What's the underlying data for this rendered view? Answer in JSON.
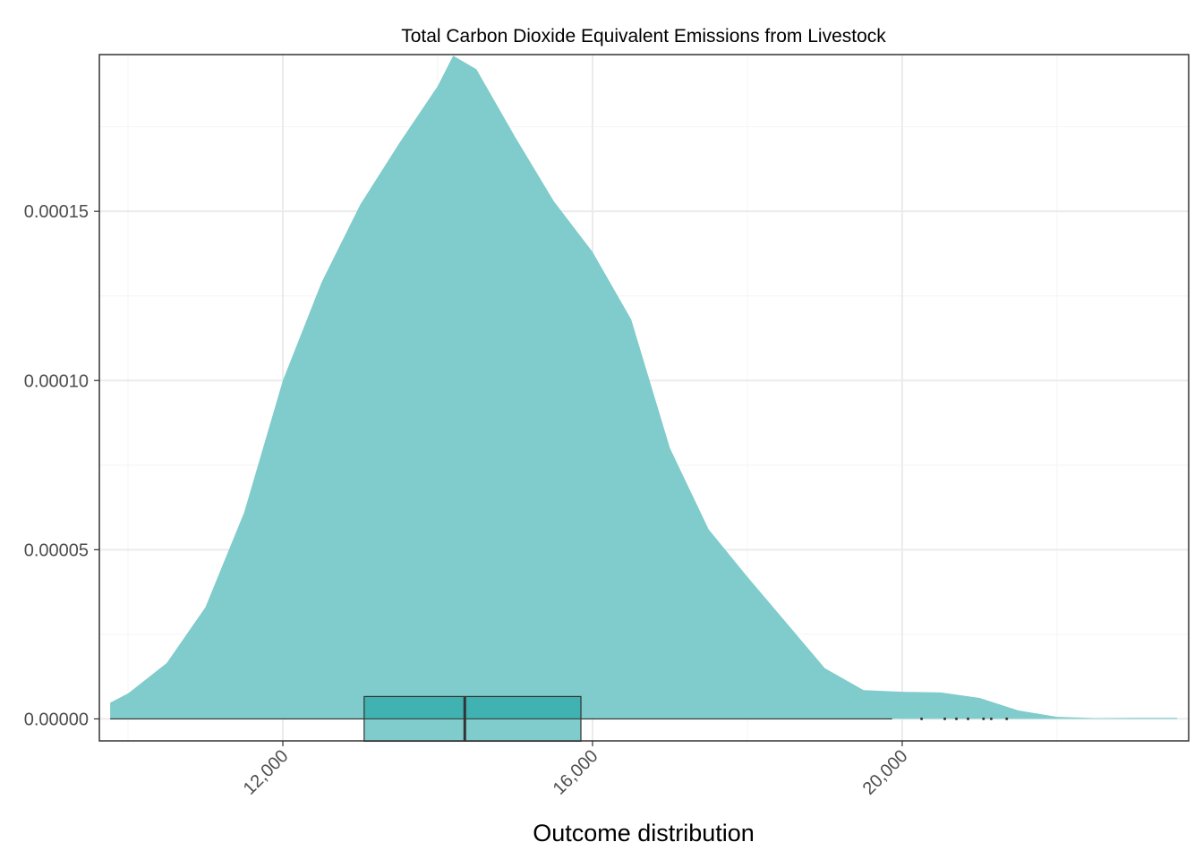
{
  "chart_data": {
    "type": "area",
    "title": "Total Carbon Dioxide Equivalent Emissions from Livestock",
    "xlabel": "Outcome distribution",
    "ylabel": "",
    "xlim": [
      9630,
      23700
    ],
    "ylim": [
      -6.5e-06,
      0.00019632
    ],
    "x_ticks": [
      12000,
      16000,
      20000
    ],
    "x_tick_labels": [
      "12,000",
      "16,000",
      "20,000"
    ],
    "y_ticks": [
      0,
      5e-05,
      0.0001,
      0.00015
    ],
    "y_tick_labels": [
      "0.00000",
      "0.00005",
      "0.00010",
      "0.00015"
    ],
    "grid": true,
    "colors": {
      "density_fill": "#80cbcb",
      "box_fill": "#80cbcb",
      "box_upper_fill": "#40b2b2",
      "box_stroke": "#333333",
      "grid_major": "#ebebeb",
      "grid_minor": "#f5f5f5",
      "panel_border": "#333333"
    },
    "density": {
      "x": [
        9770,
        10000,
        10500,
        11000,
        11500,
        12000,
        12500,
        13000,
        13500,
        14000,
        14200,
        14500,
        15000,
        15500,
        16000,
        16500,
        17000,
        17500,
        18000,
        18500,
        19000,
        19500,
        20000,
        20500,
        21000,
        21500,
        22000,
        22500,
        23000,
        23550
      ],
      "y": [
        4.8e-06,
        7.5e-06,
        1.65e-05,
        3.3e-05,
        6.1e-05,
        0.0001,
        0.000129,
        0.000152,
        0.00017,
        0.000187,
        0.000196,
        0.000192,
        0.000172,
        0.000153,
        0.000138,
        0.000118,
        8e-05,
        5.6e-05,
        4.2e-05,
        2.85e-05,
        1.5e-05,
        8.5e-06,
        8e-06,
        7.8e-06,
        6.2e-06,
        2.5e-06,
        6e-07,
        2e-07,
        3e-07,
        3e-07
      ]
    },
    "boxplot": {
      "q1": 13050,
      "median": 14350,
      "q3": 15850,
      "whisker_low": 9770,
      "whisker_high": 19870,
      "outliers": [
        20250,
        20550,
        20700,
        20850,
        21050,
        21150,
        21350
      ]
    }
  }
}
